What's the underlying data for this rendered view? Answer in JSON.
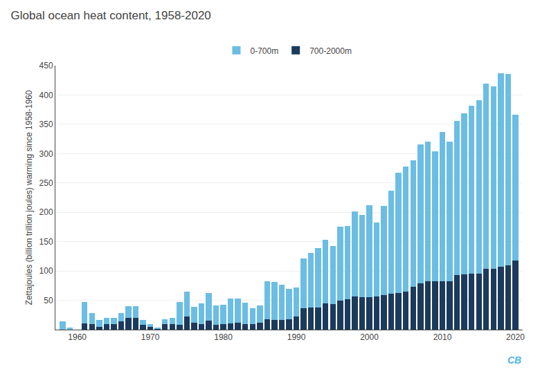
{
  "chart_data": {
    "type": "bar",
    "stacked": true,
    "title": "Global ocean heat content, 1958-2020",
    "ylabel": "Zettajoules (billion trillion joules) warming since 1958-1960",
    "x": [
      1958,
      1959,
      1960,
      1961,
      1962,
      1963,
      1964,
      1965,
      1966,
      1967,
      1968,
      1969,
      1970,
      1971,
      1972,
      1973,
      1974,
      1975,
      1976,
      1977,
      1978,
      1979,
      1980,
      1981,
      1982,
      1983,
      1984,
      1985,
      1986,
      1987,
      1988,
      1989,
      1990,
      1991,
      1992,
      1993,
      1994,
      1995,
      1996,
      1997,
      1998,
      1999,
      2000,
      2001,
      2002,
      2003,
      2004,
      2005,
      2006,
      2007,
      2008,
      2009,
      2010,
      2011,
      2012,
      2013,
      2014,
      2015,
      2016,
      2017,
      2018,
      2019,
      2020
    ],
    "series": [
      {
        "name": "0-700m",
        "color": "#6bbde3",
        "values": [
          14,
          4,
          0,
          36,
          19,
          11,
          10,
          10,
          14,
          20,
          20,
          9,
          5,
          2,
          9,
          10,
          39,
          43,
          27,
          35,
          47,
          33,
          32,
          42,
          41,
          36,
          27,
          29,
          65,
          64,
          60,
          51,
          50,
          85,
          93,
          101,
          108,
          98,
          127,
          125,
          145,
          140,
          157,
          126,
          152,
          176,
          205,
          213,
          216,
          237,
          238,
          222,
          255,
          237,
          263,
          275,
          287,
          295,
          315,
          311,
          330,
          326,
          248
        ]
      },
      {
        "name": "700-2000m",
        "color": "#1b3a5c",
        "values": [
          0,
          0,
          0,
          11,
          9,
          5,
          10,
          10,
          14,
          20,
          20,
          8,
          5,
          2,
          9,
          10,
          8,
          22,
          12,
          10,
          15,
          8,
          10,
          11,
          12,
          10,
          9,
          12,
          18,
          17,
          17,
          18,
          22,
          36,
          38,
          38,
          45,
          44,
          49,
          52,
          56,
          55,
          55,
          57,
          59,
          61,
          63,
          65,
          73,
          79,
          83,
          82,
          82,
          83,
          93,
          94,
          95,
          96,
          104,
          104,
          107,
          110,
          118
        ]
      }
    ],
    "xlim": [
      1957,
      2021
    ],
    "xticks": [
      1960,
      1970,
      1980,
      1990,
      2000,
      2010,
      2020
    ],
    "ylim": [
      0,
      450
    ],
    "yticks": [
      50,
      100,
      150,
      200,
      250,
      300,
      350,
      400,
      450
    ],
    "grid": true,
    "legend": "top",
    "annotations": [
      "CB"
    ]
  }
}
